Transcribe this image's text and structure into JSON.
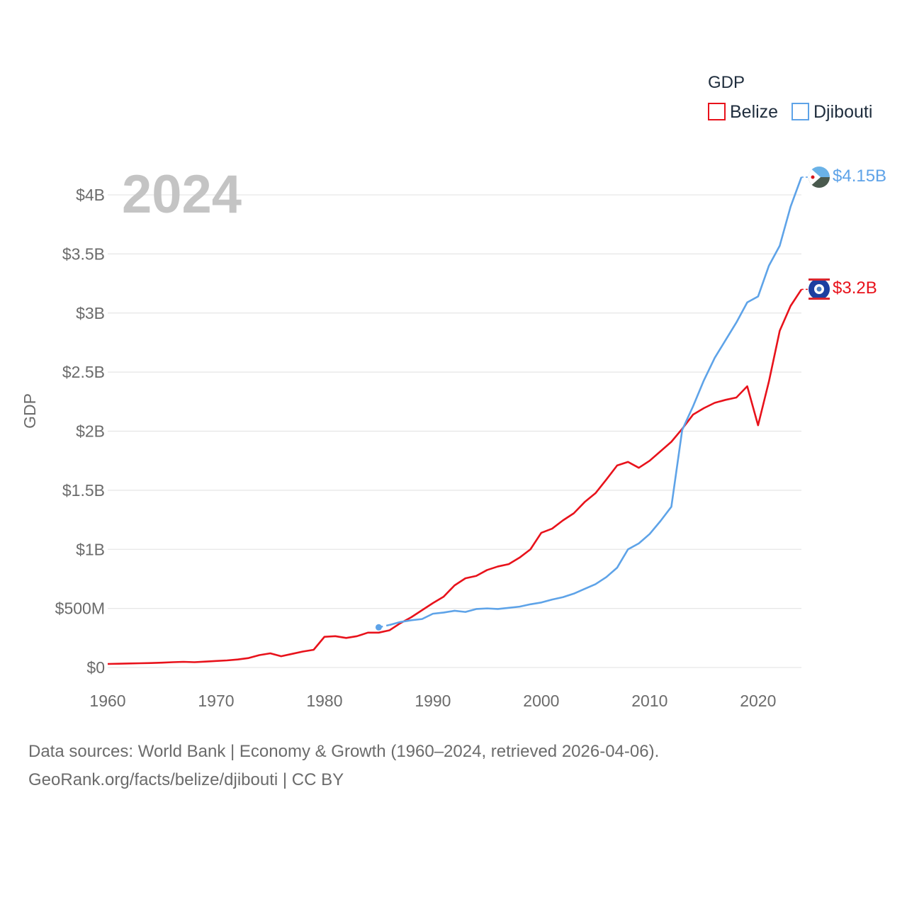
{
  "chart_data": {
    "type": "line",
    "title": "GDP",
    "ylabel": "GDP",
    "xlabel": "",
    "year_label": "2024",
    "ylim": [
      0,
      4.2
    ],
    "xlim": [
      1960,
      2025
    ],
    "y_ticks": [
      {
        "value": 0,
        "label": "$0"
      },
      {
        "value": 0.5,
        "label": "$500M"
      },
      {
        "value": 1,
        "label": "$1B"
      },
      {
        "value": 1.5,
        "label": "$1.5B"
      },
      {
        "value": 2,
        "label": "$2B"
      },
      {
        "value": 2.5,
        "label": "$2.5B"
      },
      {
        "value": 3,
        "label": "$3B"
      },
      {
        "value": 3.5,
        "label": "$3.5B"
      },
      {
        "value": 4,
        "label": "$4B"
      }
    ],
    "x_ticks": [
      {
        "value": 1960,
        "label": "1960"
      },
      {
        "value": 1970,
        "label": "1970"
      },
      {
        "value": 1980,
        "label": "1980"
      },
      {
        "value": 1990,
        "label": "1990"
      },
      {
        "value": 2000,
        "label": "2000"
      },
      {
        "value": 2010,
        "label": "2010"
      },
      {
        "value": 2020,
        "label": "2020"
      }
    ],
    "legend": {
      "title": "GDP",
      "position": "top-right"
    },
    "series": [
      {
        "name": "Belize",
        "color": "#e8121b",
        "end_label": "$3.2B",
        "unit": "billion USD",
        "x": [
          1960,
          1961,
          1962,
          1963,
          1964,
          1965,
          1966,
          1967,
          1968,
          1969,
          1970,
          1971,
          1972,
          1973,
          1974,
          1975,
          1976,
          1977,
          1978,
          1979,
          1980,
          1981,
          1982,
          1983,
          1984,
          1985,
          1986,
          1987,
          1988,
          1989,
          1990,
          1991,
          1992,
          1993,
          1994,
          1995,
          1996,
          1997,
          1998,
          1999,
          2000,
          2001,
          2002,
          2003,
          2004,
          2005,
          2006,
          2007,
          2008,
          2009,
          2010,
          2011,
          2012,
          2013,
          2014,
          2015,
          2016,
          2017,
          2018,
          2019,
          2020,
          2021,
          2022,
          2023,
          2024
        ],
        "values": [
          0.03,
          0.032,
          0.034,
          0.036,
          0.038,
          0.041,
          0.045,
          0.048,
          0.045,
          0.05,
          0.055,
          0.06,
          0.068,
          0.08,
          0.105,
          0.12,
          0.095,
          0.115,
          0.135,
          0.15,
          0.26,
          0.265,
          0.25,
          0.265,
          0.295,
          0.295,
          0.315,
          0.375,
          0.425,
          0.485,
          0.545,
          0.6,
          0.695,
          0.755,
          0.775,
          0.825,
          0.855,
          0.875,
          0.93,
          1.0,
          1.14,
          1.175,
          1.245,
          1.305,
          1.4,
          1.475,
          1.59,
          1.71,
          1.74,
          1.69,
          1.75,
          1.83,
          1.91,
          2.02,
          2.14,
          2.195,
          2.24,
          2.265,
          2.285,
          2.38,
          2.05,
          2.42,
          2.85,
          3.06,
          3.2
        ]
      },
      {
        "name": "Djibouti",
        "color": "#5ea3e8",
        "end_label": "$4.15B",
        "unit": "billion USD",
        "dashed_start": {
          "x": [
            1985,
            1986
          ],
          "values": [
            0.34,
            0.36
          ]
        },
        "x": [
          1986,
          1987,
          1988,
          1989,
          1990,
          1991,
          1992,
          1993,
          1994,
          1995,
          1996,
          1997,
          1998,
          1999,
          2000,
          2001,
          2002,
          2003,
          2004,
          2005,
          2006,
          2007,
          2008,
          2009,
          2010,
          2011,
          2012,
          2013,
          2014,
          2015,
          2016,
          2017,
          2018,
          2019,
          2020,
          2021,
          2022,
          2023,
          2024
        ],
        "values": [
          0.36,
          0.385,
          0.4,
          0.41,
          0.455,
          0.465,
          0.48,
          0.47,
          0.495,
          0.5,
          0.495,
          0.505,
          0.515,
          0.535,
          0.55,
          0.575,
          0.595,
          0.625,
          0.665,
          0.705,
          0.765,
          0.845,
          1.0,
          1.05,
          1.13,
          1.24,
          1.36,
          2.01,
          2.21,
          2.43,
          2.62,
          2.77,
          2.92,
          3.09,
          3.14,
          3.4,
          3.57,
          3.9,
          4.15
        ]
      }
    ]
  },
  "footer": {
    "line1": "Data sources: World Bank | Economy & Growth (1960–2024, retrieved 2026-04-06).",
    "line2": "GeoRank.org/facts/belize/djibouti | CC BY"
  }
}
